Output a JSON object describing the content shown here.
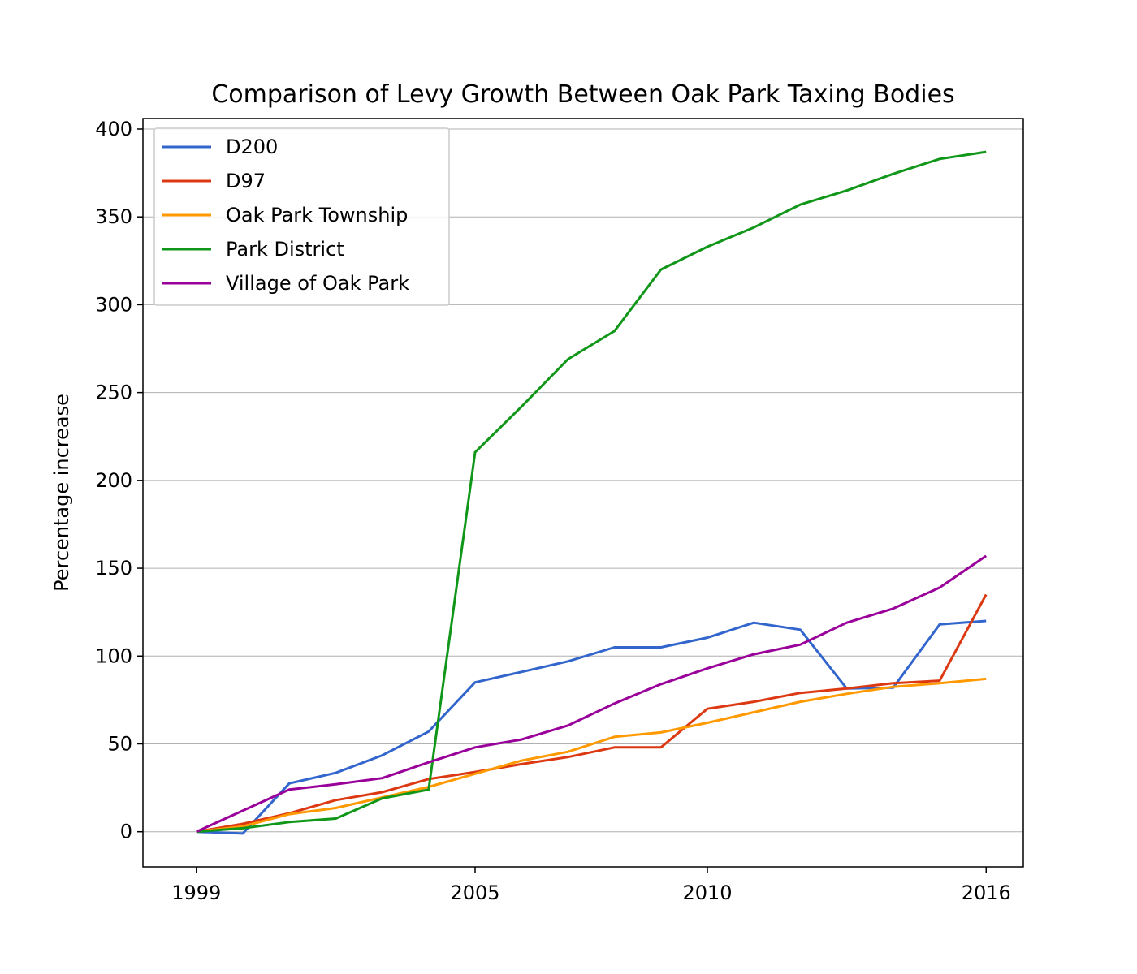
{
  "chart_data": {
    "type": "line",
    "title": "Comparison of Levy Growth Between Oak Park Taxing Bodies",
    "xlabel": "",
    "ylabel": "Percentage increase",
    "xlim": [
      1997.85,
      2016.8
    ],
    "ylim": [
      -20,
      406
    ],
    "xticks": [
      1999,
      2005,
      2010,
      2016
    ],
    "xtick_labels": [
      "1999",
      "2005",
      "2010",
      "2016"
    ],
    "yticks": [
      0,
      50,
      100,
      150,
      200,
      250,
      300,
      350,
      400
    ],
    "ytick_labels": [
      "0",
      "50",
      "100",
      "150",
      "200",
      "250",
      "300",
      "350",
      "400"
    ],
    "grid": "horizontal",
    "legend_position": "top-left",
    "x": [
      1999,
      2000,
      2001,
      2002,
      2003,
      2004,
      2005,
      2006,
      2007,
      2008,
      2009,
      2010,
      2011,
      2012,
      2013,
      2014,
      2015,
      2016
    ],
    "series": [
      {
        "name": "D200",
        "color": "#3366cc",
        "values": [
          0,
          -1,
          27.5,
          33.5,
          43.5,
          57,
          85,
          91,
          97,
          105,
          105,
          110.5,
          119,
          115,
          81.5,
          82,
          118,
          120
        ]
      },
      {
        "name": "D97",
        "color": "#dc3912",
        "values": [
          0,
          4.5,
          10.5,
          18,
          22.5,
          30,
          34,
          38.5,
          42.5,
          48,
          48,
          70,
          74,
          79,
          81.5,
          84.5,
          86,
          135
        ]
      },
      {
        "name": "Oak Park Township",
        "color": "#ff9900",
        "values": [
          0,
          3,
          10,
          13.5,
          19.5,
          25.5,
          33,
          40.5,
          45.5,
          54,
          56.5,
          62,
          68,
          74,
          78.5,
          82.5,
          84.5,
          87
        ]
      },
      {
        "name": "Park District",
        "color": "#109618",
        "values": [
          0,
          2,
          5.5,
          7.5,
          19,
          24,
          216,
          242,
          269,
          285,
          320,
          333,
          344,
          357,
          365,
          374.5,
          383,
          387
        ]
      },
      {
        "name": "Village of Oak Park",
        "color": "#990099",
        "values": [
          0,
          12,
          24,
          27,
          30.5,
          39.5,
          48,
          52.5,
          60.5,
          73,
          84,
          93,
          101,
          106.5,
          119,
          127,
          139,
          157
        ]
      }
    ]
  }
}
